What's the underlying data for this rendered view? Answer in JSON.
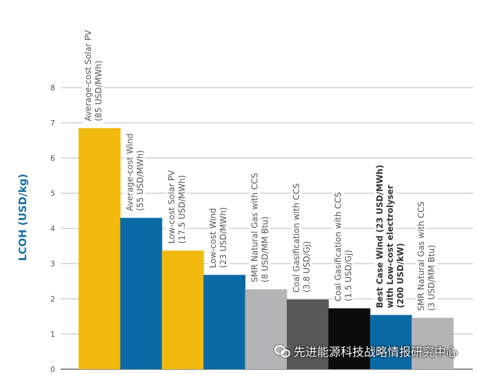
{
  "chart_data": {
    "type": "bar",
    "title": "",
    "xlabel": "",
    "ylabel": "LCOH (USD/kg)",
    "ylim": [
      0,
      8
    ],
    "yticks": [
      0,
      1,
      2,
      3,
      4,
      5,
      6,
      7,
      8
    ],
    "grid": true,
    "categories": [
      {
        "line1": "Average-cost Solar PV",
        "line2": "(85 USD/MWh)",
        "bold": false
      },
      {
        "line1": "Average-cost Wind",
        "line2": "(55 USD/MWh)",
        "bold": false
      },
      {
        "line1": "Low-cost Solar PV",
        "line2": "(17.5 USD/MWh)",
        "bold": false
      },
      {
        "line1": "Low-cost Wind",
        "line2": "(23 USD/MWh)",
        "bold": false
      },
      {
        "line1": "SMR Natural Gas with CCS",
        "line2": "(8 USD/MM Btu)",
        "bold": false
      },
      {
        "line1": "Coal Gasification with CCS",
        "line2": "(3.8 USD/Gj)",
        "bold": false
      },
      {
        "line1": "Coal Gasification with CCS",
        "line2": "(1.5 USD/Gj)",
        "bold": false
      },
      {
        "line1": "Best Case Wind (23 USD/MWh)",
        "line2": "with Low-cost electrolyser",
        "line3": "(200 USD/kW)",
        "bold": true
      },
      {
        "line1": "SMR Natural Gas with CCS",
        "line2": "(3 USD/MM Btu)",
        "bold": false
      }
    ],
    "values": [
      6.85,
      4.3,
      3.37,
      2.68,
      2.27,
      1.98,
      1.73,
      1.54,
      1.46
    ],
    "colors": [
      "#f2b90f",
      "#0a6aa6",
      "#f2b90f",
      "#0a6aa6",
      "#b4b4b6",
      "#58585a",
      "#0c0c0c",
      "#0a6aa6",
      "#b4b4b6"
    ]
  },
  "watermark": "先进能源科技战略情报研究中心"
}
